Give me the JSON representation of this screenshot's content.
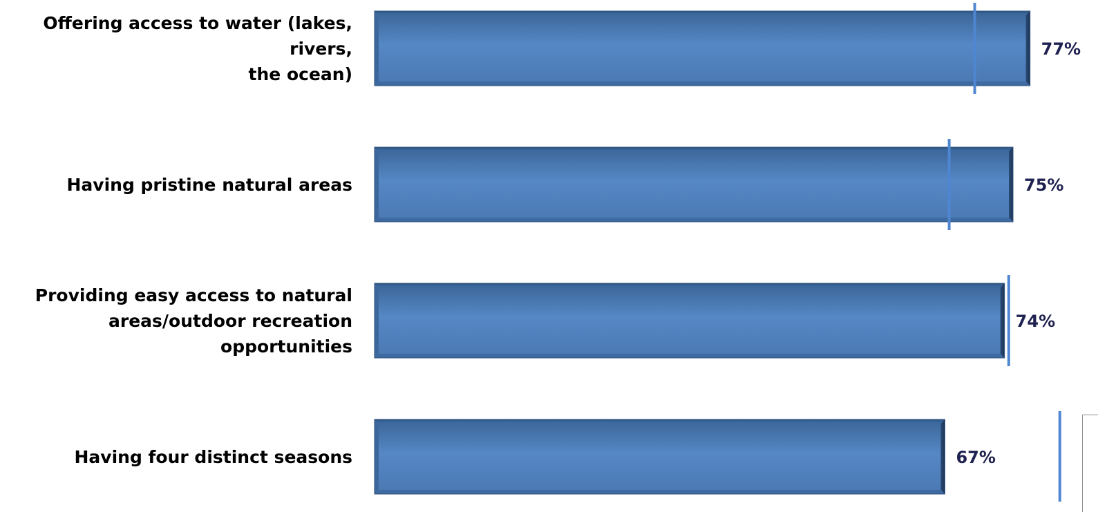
{
  "colors": {
    "bar_top": "#3a6496",
    "bar_mid": "#5688c6",
    "bar_bottom": "#4a78b2",
    "bar_edge": "#2c4f7a",
    "marker": "#4f86d2",
    "value_text": "#1f2150",
    "label_text": "#000000"
  },
  "chart_data": {
    "type": "bar",
    "orientation": "horizontal",
    "categories": [
      "Offering access to water (lakes, rivers, the ocean)",
      "Having pristine natural areas",
      "Providing easy access to natural areas/outdoor recreation opportunities",
      "Having four distinct seasons"
    ],
    "category_lines": [
      [
        "Offering access to water (lakes, rivers,",
        "the ocean)"
      ],
      [
        "Having pristine natural areas"
      ],
      [
        "Providing easy access to natural",
        "areas/outdoor recreation",
        "opportunities"
      ],
      [
        "Having four distinct seasons"
      ]
    ],
    "values": [
      77,
      75,
      74,
      67
    ],
    "value_labels": [
      "77%",
      "75%",
      "74%",
      "67%"
    ],
    "comparison_markers": [
      70.5,
      67.5,
      74.5,
      80.5
    ],
    "xlim": [
      0,
      100
    ],
    "grid": false,
    "legend": "none"
  }
}
